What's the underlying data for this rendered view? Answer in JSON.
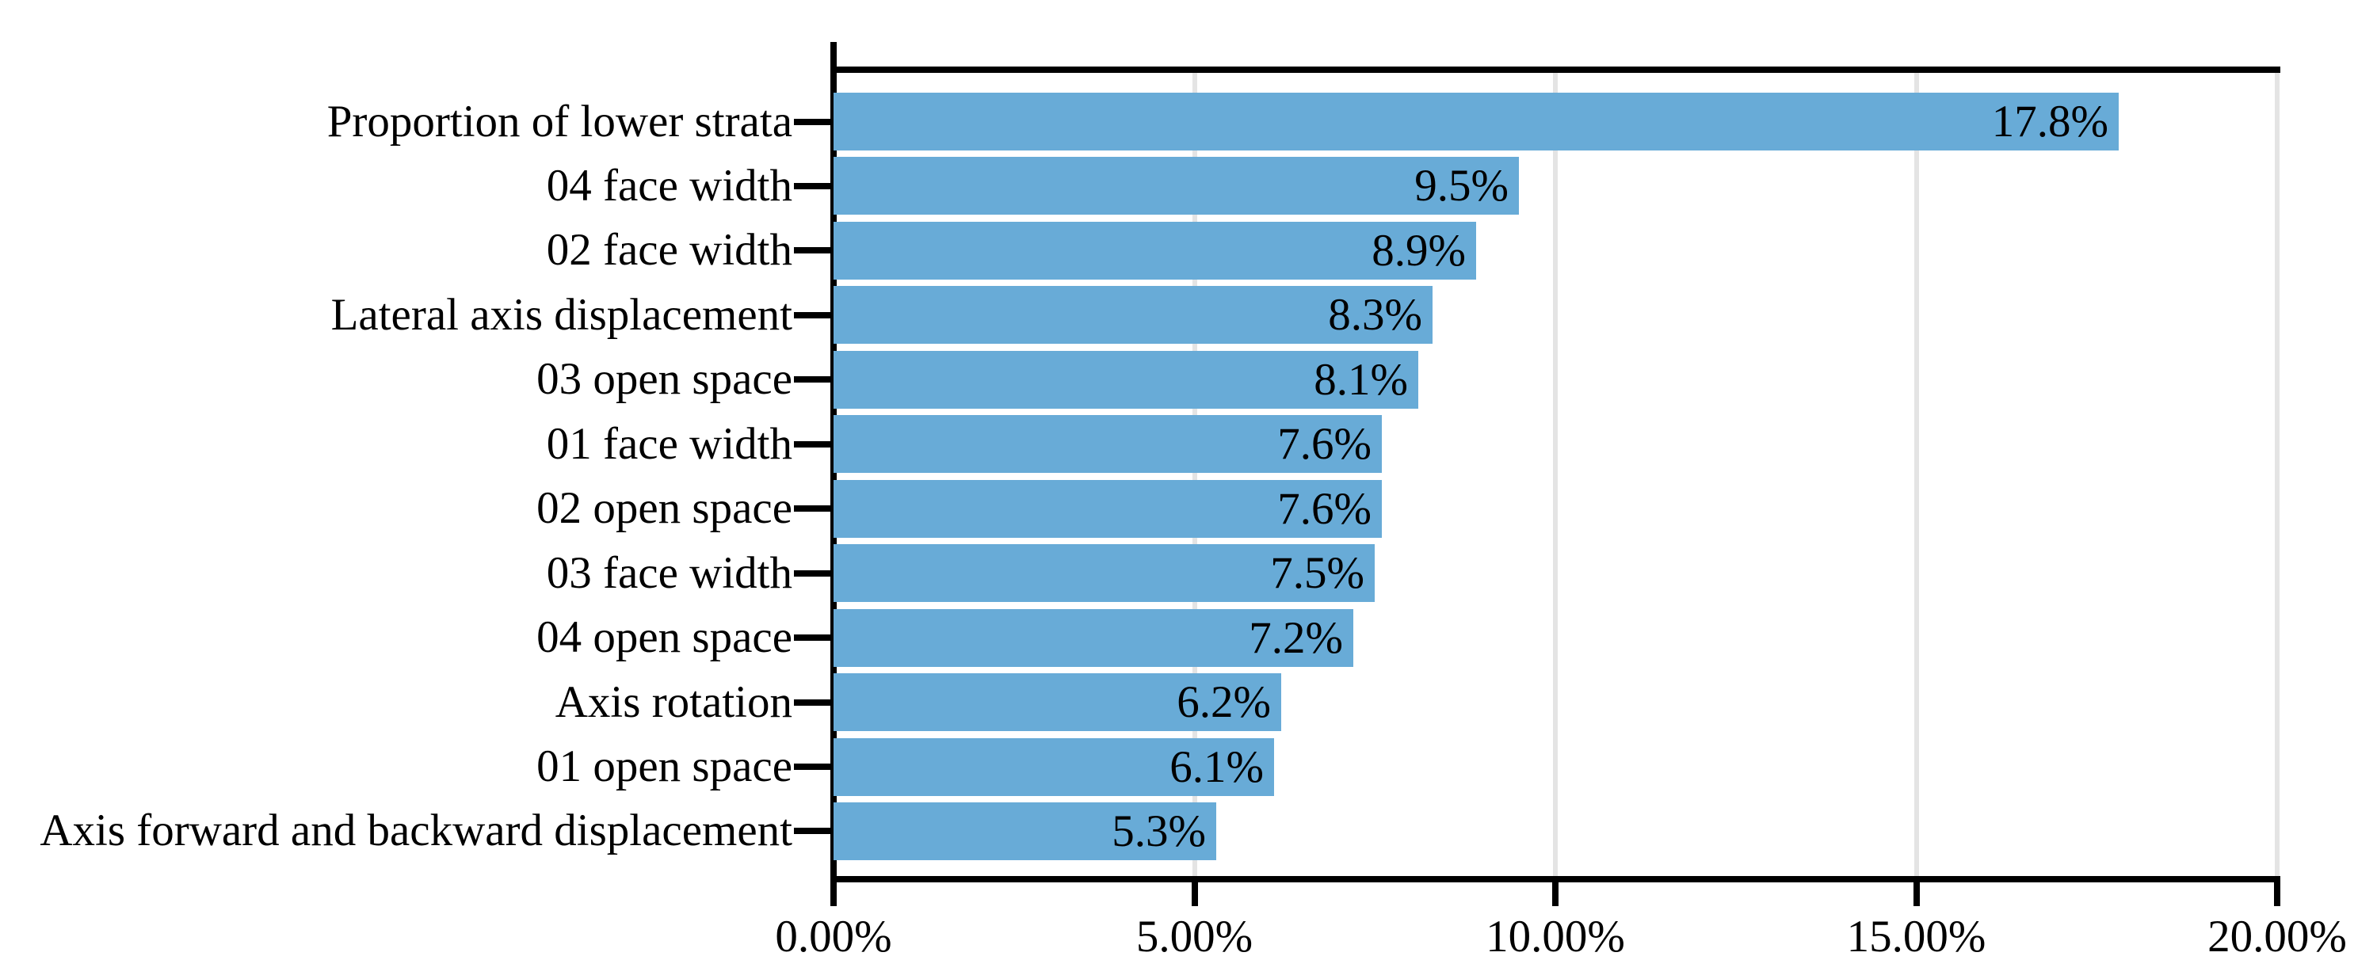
{
  "chart_data": {
    "type": "bar",
    "orientation": "horizontal",
    "title": "",
    "categories": [
      "Proportion of lower strata",
      "04 face width",
      "02 face width",
      "Lateral axis displacement",
      "03 open space",
      "01 face width",
      "02 open space",
      "03 face width",
      "04 open space",
      "Axis rotation",
      "01 open space",
      "Axis forward and backward displacement"
    ],
    "values": [
      17.8,
      9.5,
      8.9,
      8.3,
      8.1,
      7.6,
      7.6,
      7.5,
      7.2,
      6.2,
      6.1,
      5.3
    ],
    "value_labels": [
      "17.8%",
      "9.5%",
      "8.9%",
      "8.3%",
      "8.1%",
      "7.6%",
      "7.6%",
      "7.5%",
      "7.2%",
      "6.2%",
      "6.1%",
      "5.3%"
    ],
    "x_axis": {
      "tick_labels": [
        "0.00%",
        "5.00%",
        "10.00%",
        "15.00%",
        "20.00%"
      ],
      "tick_values": [
        0,
        5,
        10,
        15,
        20
      ],
      "range": [
        0,
        20
      ]
    },
    "xlim": [
      0,
      20
    ],
    "ylabel": "",
    "xlabel": "",
    "legend": null,
    "grid": "faint vertical gridlines at 5% intervals, visible between bars",
    "colors": {
      "bar": "#68ABD7",
      "axis": "#000000",
      "text": "#000000",
      "gridline": "#e4e4e4",
      "background": "#ffffff"
    }
  }
}
